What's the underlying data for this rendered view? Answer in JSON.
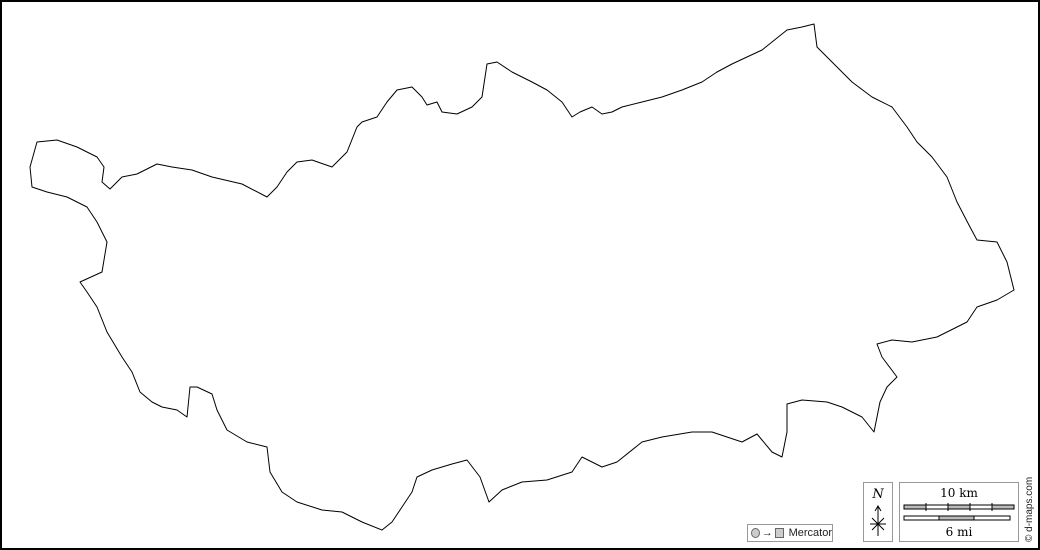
{
  "map": {
    "outline_color": "#000000",
    "projection_label": "Mercator",
    "north_label": "N",
    "scale_km_label": "10 km",
    "scale_mi_label": "6 mi",
    "credit": "© d-maps.com"
  }
}
